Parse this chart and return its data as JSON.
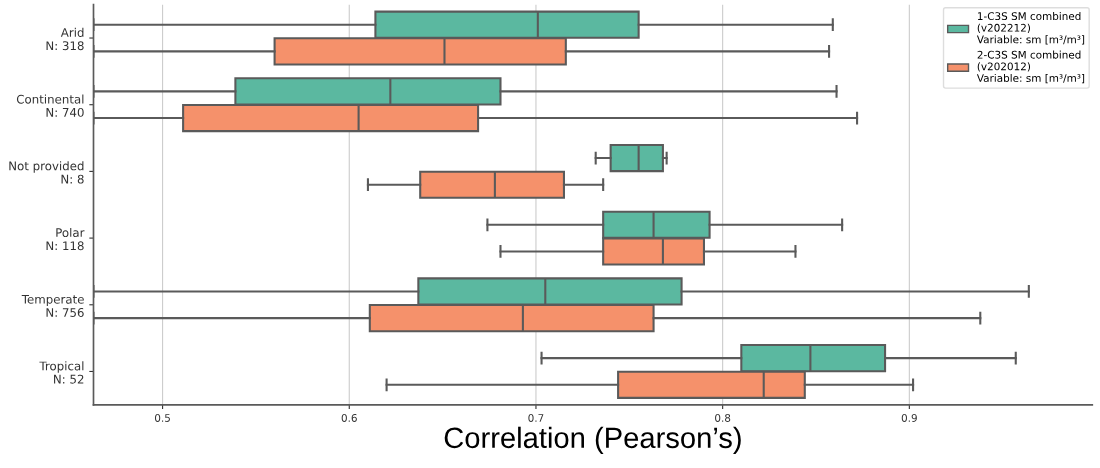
{
  "chart_data": {
    "type": "box",
    "orientation": "horizontal",
    "xlabel": "Correlation (Pearson’s)",
    "categories": [
      "Arid\nN: 318",
      "Continental\nN: 740",
      "Not provided\nN: 8",
      "Polar\nN: 118",
      "Temperate\nN: 756",
      "Tropical\nN: 52"
    ],
    "xlim": [
      0.463,
      0.998
    ],
    "xticks": [
      0.5,
      0.6,
      0.7,
      0.8,
      0.9
    ],
    "grid": "x",
    "legend": "top right",
    "series": [
      {
        "name": "1-C3S SM combined\n(v202212)\nVariable: sm [m³/m³]",
        "color": "#5bb8a0",
        "boxes": [
          {
            "low": 0.463,
            "q1": 0.614,
            "median": 0.701,
            "q3": 0.755,
            "high": 0.859
          },
          {
            "low": 0.463,
            "q1": 0.539,
            "median": 0.622,
            "q3": 0.681,
            "high": 0.861
          },
          {
            "low": 0.732,
            "q1": 0.74,
            "median": 0.755,
            "q3": 0.768,
            "high": 0.77
          },
          {
            "low": 0.674,
            "q1": 0.736,
            "median": 0.763,
            "q3": 0.793,
            "high": 0.864
          },
          {
            "low": 0.463,
            "q1": 0.637,
            "median": 0.705,
            "q3": 0.778,
            "high": 0.964
          },
          {
            "low": 0.703,
            "q1": 0.81,
            "median": 0.847,
            "q3": 0.887,
            "high": 0.957
          }
        ]
      },
      {
        "name": "2-C3S SM combined\n(v202012)\nVariable: sm [m³/m³]",
        "color": "#f5916b",
        "boxes": [
          {
            "low": 0.463,
            "q1": 0.56,
            "median": 0.651,
            "q3": 0.716,
            "high": 0.857
          },
          {
            "low": 0.463,
            "q1": 0.511,
            "median": 0.605,
            "q3": 0.669,
            "high": 0.872
          },
          {
            "low": 0.61,
            "q1": 0.638,
            "median": 0.678,
            "q3": 0.715,
            "high": 0.736
          },
          {
            "low": 0.681,
            "q1": 0.736,
            "median": 0.768,
            "q3": 0.79,
            "high": 0.839
          },
          {
            "low": 0.463,
            "q1": 0.611,
            "median": 0.693,
            "q3": 0.763,
            "high": 0.938
          },
          {
            "low": 0.62,
            "q1": 0.744,
            "median": 0.822,
            "q3": 0.844,
            "high": 0.902
          }
        ]
      }
    ]
  }
}
